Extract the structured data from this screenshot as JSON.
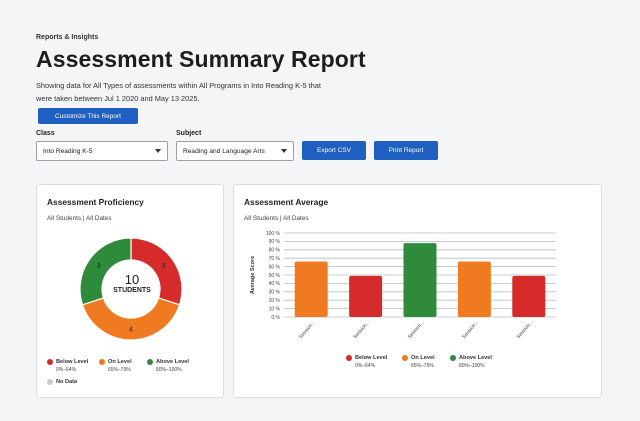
{
  "header": {
    "eyebrow": "Reports & Insights",
    "title": "Assessment Summary Report",
    "description": "Showing data for All Types of assessments within All Programs in Into Reading K-5 that were taken between Jul 1 2020 and May 13 2025."
  },
  "toolbar": {
    "customize_label": "Customize This Report",
    "class_label": "Class",
    "class_value": "Into Reading K-5",
    "subject_label": "Subject",
    "subject_value": "Reading and Language Arts",
    "export_label": "Export CSV",
    "print_label": "Print Report"
  },
  "colors": {
    "below": "#d62b2b",
    "on": "#f07a22",
    "above": "#2f8a3c",
    "no_data": "#c8c8c8",
    "primary": "#1f5fbf"
  },
  "proficiency": {
    "title": "Assessment Proficiency",
    "subtitle": "All Students | All Dates",
    "total": "10",
    "total_caption": "STUDENTS",
    "legend": [
      {
        "label": "Below Level",
        "range": "0%–64%",
        "color": "#d62b2b"
      },
      {
        "label": "On Level",
        "range": "65%–79%",
        "color": "#f07a22"
      },
      {
        "label": "Above Level",
        "range": "80%–100%",
        "color": "#2f8a3c"
      },
      {
        "label": "No Data",
        "range": "",
        "color": "#c8c8c8"
      }
    ]
  },
  "average": {
    "title": "Assessment Average",
    "subtitle": "All Students | All Dates",
    "legend": [
      {
        "label": "Below Level",
        "range": "0%–64%",
        "color": "#d62b2b"
      },
      {
        "label": "On Level",
        "range": "65%–79%",
        "color": "#f07a22"
      },
      {
        "label": "Above Level",
        "range": "80%–100%",
        "color": "#2f8a3c"
      }
    ]
  },
  "chart_data": [
    {
      "type": "pie",
      "title": "Assessment Proficiency",
      "categories": [
        "Below Level",
        "On Level",
        "Above Level"
      ],
      "values": [
        3,
        4,
        3
      ],
      "colors": [
        "#d62b2b",
        "#f07a22",
        "#2f8a3c"
      ]
    },
    {
      "type": "bar",
      "title": "Assessment Average",
      "ylabel": "Average Score",
      "xlabel": "",
      "ylim": [
        0,
        100
      ],
      "yticks": [
        "0 %",
        "10 %",
        "20 %",
        "30 %",
        "40 %",
        "50 %",
        "60 %",
        "70 %",
        "80 %",
        "90 %",
        "100 %"
      ],
      "categories": [
        "Session...",
        "Session...",
        "Session...",
        "Session...",
        "Session..."
      ],
      "values": [
        66,
        49,
        88,
        66,
        49
      ],
      "colors": [
        "#f07a22",
        "#d62b2b",
        "#2f8a3c",
        "#f07a22",
        "#d62b2b"
      ],
      "grid": true
    }
  ]
}
